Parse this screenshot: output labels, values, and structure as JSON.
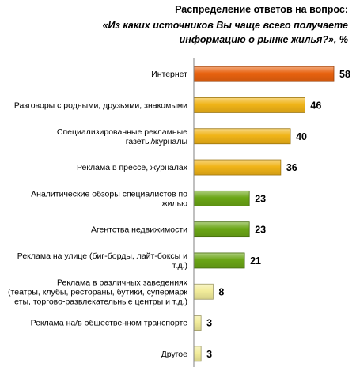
{
  "chart_data": {
    "type": "bar",
    "orientation": "horizontal",
    "title": "Распределение ответов на вопрос:",
    "subtitle_lines": [
      "«Из каких источников Вы чаще всего получаете",
      "информацию о рынке жилья?», %"
    ],
    "categories": [
      [
        "Интернет"
      ],
      [
        "Разговоры с родными, друзьями, знакомыми"
      ],
      [
        "Специализированные рекламные",
        "газеты/журналы"
      ],
      [
        "Реклама в прессе, журналах"
      ],
      [
        "Аналитические обзоры специалистов по",
        "жилью"
      ],
      [
        "Агентства недвижимости"
      ],
      [
        "Реклама на улице (биг-борды, лайт-боксы и",
        "т.д.)"
      ],
      [
        "Реклама в различных заведениях",
        "(театры, клубы, рестораны, бутики, супермарк",
        "еты, торгово-развлекательные центры и т.д.)"
      ],
      [
        "Реклама на/в общественном транспорте"
      ],
      [
        "Другое"
      ]
    ],
    "values": [
      58,
      46,
      40,
      36,
      23,
      23,
      21,
      8,
      3,
      3
    ],
    "bar_colors": [
      "#E8620F",
      "#F0B418",
      "#F0B418",
      "#F0B418",
      "#6BA616",
      "#6BA616",
      "#6BA616",
      "#F2EC9A",
      "#F2EC9A",
      "#F2EC9A"
    ],
    "xlim": [
      0,
      60
    ],
    "grid": false,
    "legend": "none"
  }
}
